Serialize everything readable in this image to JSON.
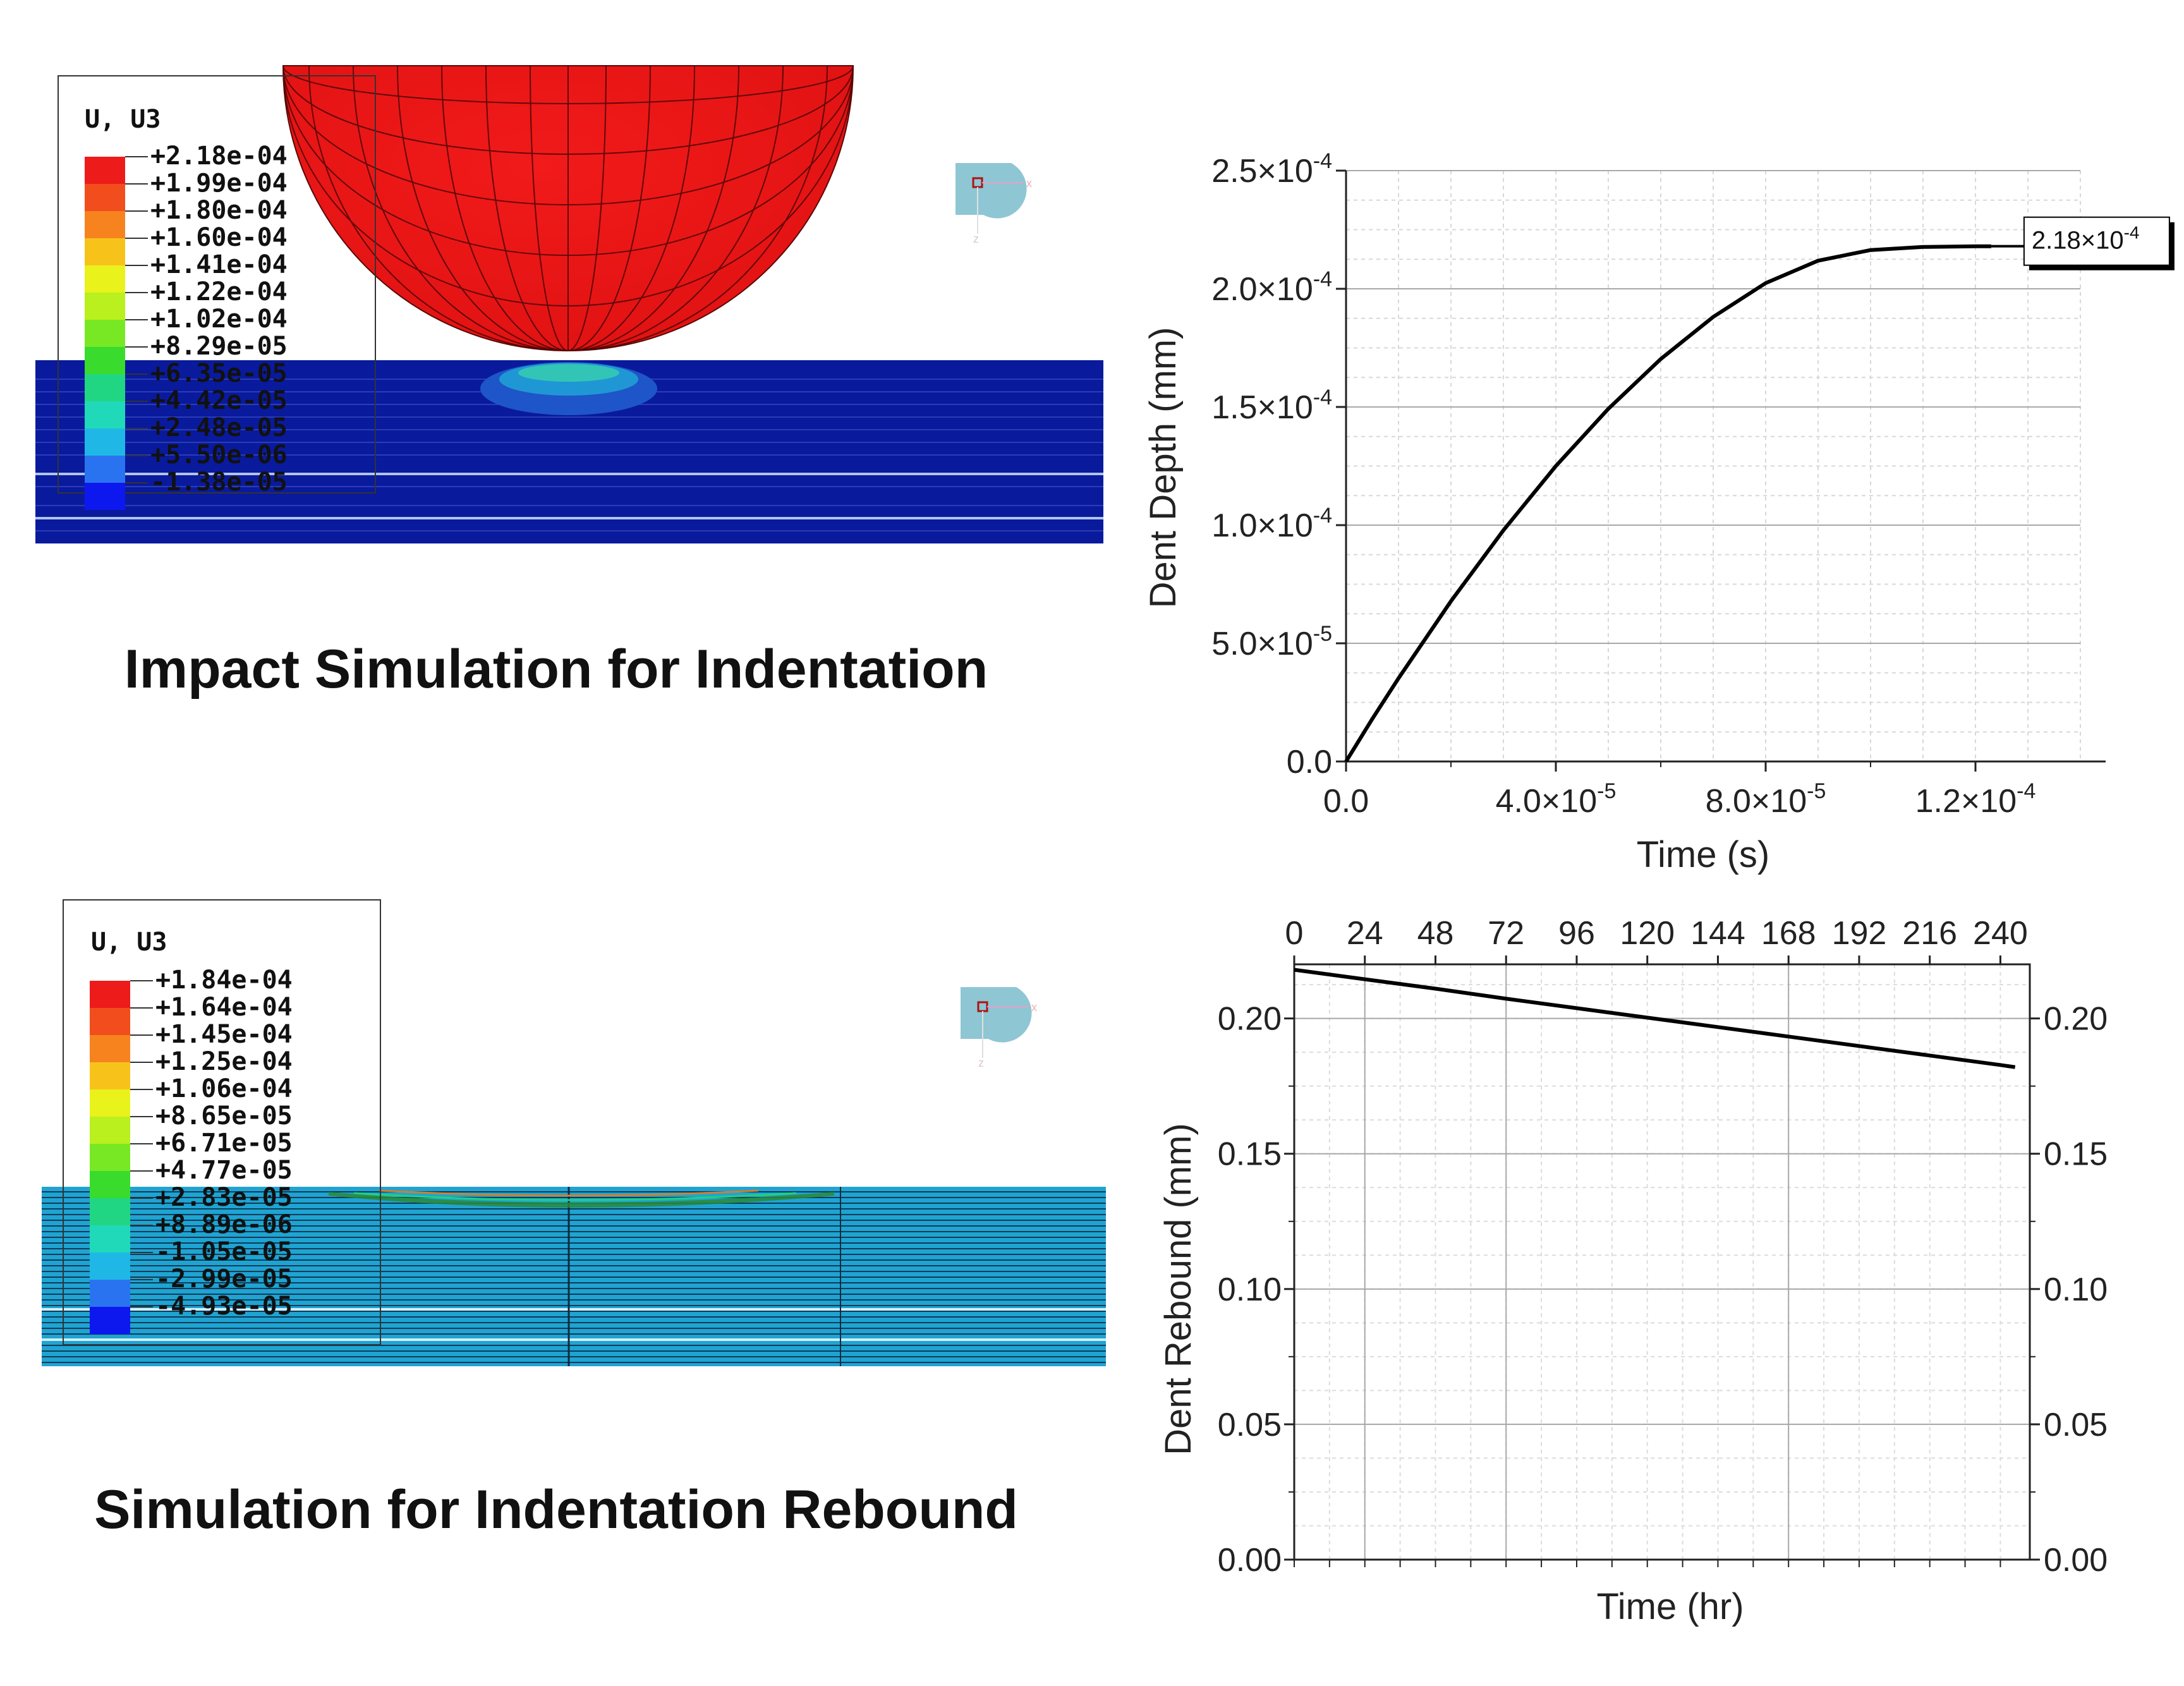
{
  "panels": {
    "impact": {
      "title": "Impact Simulation for Indentation",
      "legend": {
        "header": "U, U3",
        "labels": [
          "+2.18e-04",
          "+1.99e-04",
          "+1.80e-04",
          "+1.60e-04",
          "+1.41e-04",
          "+1.22e-04",
          "+1.02e-04",
          "+8.29e-05",
          "+6.35e-05",
          "+4.42e-05",
          "+2.48e-05",
          "+5.50e-06",
          "-1.38e-05"
        ],
        "colors": [
          "#ee1b1b",
          "#f24d1c",
          "#f7831f",
          "#f7c31b",
          "#e9f21b",
          "#b9f01e",
          "#79e824",
          "#39db2d",
          "#21d683",
          "#1fd9b9",
          "#1fb8e6",
          "#2a73f0",
          "#0d18ef"
        ]
      },
      "triad": {
        "x": "x",
        "z": "z"
      }
    },
    "rebound": {
      "title": "Simulation for Indentation Rebound",
      "legend": {
        "header": "U, U3",
        "labels": [
          "+1.84e-04",
          "+1.64e-04",
          "+1.45e-04",
          "+1.25e-04",
          "+1.06e-04",
          "+8.65e-05",
          "+6.71e-05",
          "+4.77e-05",
          "+2.83e-05",
          "+8.89e-06",
          "-1.05e-05",
          "-2.99e-05",
          "-4.93e-05"
        ],
        "colors": [
          "#ee1b1b",
          "#f24d1c",
          "#f7831f",
          "#f7c31b",
          "#e9f21b",
          "#b9f01e",
          "#79e824",
          "#39db2d",
          "#21d683",
          "#1fd9b9",
          "#1fb8e6",
          "#2a73f0",
          "#0d18ef"
        ]
      },
      "triad": {
        "x": "x",
        "z": "z"
      }
    }
  },
  "chart_data": [
    {
      "type": "line",
      "title": "",
      "xlabel": "Time (s)",
      "ylabel": "Dent Depth (mm)",
      "xlim": [
        0,
        0.00014
      ],
      "ylim": [
        0,
        0.00025
      ],
      "xticks": [
        0,
        4e-05,
        8e-05,
        0.00012
      ],
      "xtick_labels": [
        {
          "base": "0.0",
          "exp": ""
        },
        {
          "base": "4.0×10",
          "exp": "-5"
        },
        {
          "base": "8.0×10",
          "exp": "-5"
        },
        {
          "base": "1.2×10",
          "exp": "-4"
        }
      ],
      "yticks": [
        0,
        5e-05,
        0.0001,
        0.00015,
        0.0002,
        0.00025
      ],
      "ytick_labels": [
        {
          "base": "0.0",
          "exp": ""
        },
        {
          "base": "5.0×10",
          "exp": "-5"
        },
        {
          "base": "1.0×10",
          "exp": "-4"
        },
        {
          "base": "1.5×10",
          "exp": "-4"
        },
        {
          "base": "2.0×10",
          "exp": "-4"
        },
        {
          "base": "2.5×10",
          "exp": "-4"
        }
      ],
      "series": [
        {
          "name": "Dent Depth",
          "x": [
            0,
            5e-06,
            1e-05,
            2e-05,
            3e-05,
            4e-05,
            5e-05,
            6e-05,
            7e-05,
            8e-05,
            9e-05,
            0.0001,
            0.00011,
            0.00012,
            0.000123
          ],
          "y": [
            0,
            1.8e-05,
            3.52e-05,
            6.78e-05,
            9.78e-05,
            0.000125,
            0.0001492,
            0.0001703,
            0.0001881,
            0.0002024,
            0.0002119,
            0.0002164,
            0.0002177,
            0.000218,
            0.000218
          ]
        }
      ],
      "annotation": {
        "text_base": "2.18×10",
        "text_exp": "-4",
        "x": 0.000123,
        "y": 0.000218
      },
      "grid": true
    },
    {
      "type": "line",
      "title": "",
      "xlabel": "Time (hr)",
      "ylabel": "Dent Rebound (mm)",
      "xlim": [
        0,
        250
      ],
      "ylim": [
        0,
        0.22
      ],
      "xticks_top": [
        0,
        24,
        48,
        72,
        96,
        120,
        144,
        168,
        192,
        216,
        240
      ],
      "xtick_labels_top": [
        "0",
        "24",
        "48",
        "72",
        "96",
        "120",
        "144",
        "168",
        "192",
        "216",
        "240"
      ],
      "yticks": [
        0,
        0.05,
        0.1,
        0.15,
        0.2
      ],
      "ytick_labels": [
        "0.00",
        "0.05",
        "0.10",
        "0.15",
        "0.20"
      ],
      "series": [
        {
          "name": "Dent Rebound",
          "x": [
            0,
            24,
            48,
            72,
            96,
            120,
            144,
            168,
            192,
            216,
            240,
            245
          ],
          "y": [
            0.218,
            0.2145,
            0.211,
            0.2073,
            0.2038,
            0.2003,
            0.1968,
            0.1933,
            0.1898,
            0.1863,
            0.1828,
            0.182
          ]
        }
      ],
      "grid": true
    }
  ]
}
